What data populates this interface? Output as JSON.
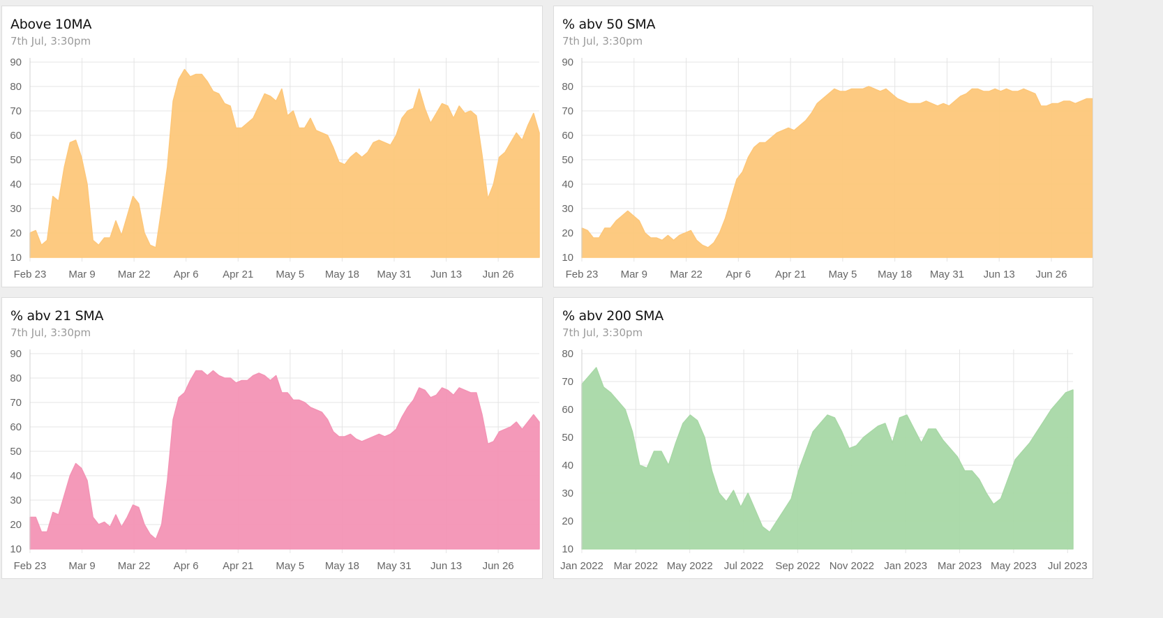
{
  "charts": [
    {
      "title": "Above 10MA",
      "subtitle": "7th Jul, 3:30pm",
      "color": "#fdc77a",
      "chart_data": {
        "type": "area",
        "ylim": [
          10,
          90
        ],
        "yticks": [
          90,
          80,
          70,
          60,
          50,
          40,
          30,
          20,
          10
        ],
        "xlim": [
          0,
          93
        ],
        "xtick_labels": [
          "Feb 23",
          "Mar 9",
          "Mar 22",
          "Apr 6",
          "Apr 21",
          "May 5",
          "May 18",
          "May 31",
          "Jun 13",
          "Jun 26"
        ],
        "xtick_positions": [
          0,
          9.5,
          19,
          28.5,
          38,
          47.5,
          57,
          66.5,
          76,
          85.5
        ],
        "series": [
          {
            "name": "Above 10MA",
            "values": [
              20,
              21,
              15,
              17,
              35,
              33,
              47,
              57,
              58,
              51,
              40,
              17,
              15,
              18,
              18,
              25,
              19,
              27,
              35,
              32,
              20,
              15,
              14,
              30,
              47,
              74,
              83,
              87,
              84,
              85,
              85,
              82,
              78,
              77,
              73,
              72,
              63,
              63,
              65,
              67,
              72,
              77,
              76,
              74,
              79,
              68,
              70,
              63,
              63,
              67,
              62,
              61,
              60,
              55,
              49,
              48,
              51,
              53,
              51,
              53,
              57,
              58,
              57,
              56,
              60,
              67,
              70,
              71,
              79,
              71,
              65,
              69,
              73,
              72,
              67,
              72,
              69,
              70,
              68,
              52,
              34,
              40,
              51,
              53,
              57,
              61,
              58,
              64,
              69,
              61
            ]
          }
        ]
      }
    },
    {
      "title": "% abv 50 SMA",
      "subtitle": "7th Jul, 3:30pm",
      "color": "#fdc77a",
      "chart_data": {
        "type": "area",
        "ylim": [
          10,
          90
        ],
        "yticks": [
          90,
          80,
          70,
          60,
          50,
          40,
          30,
          20,
          10
        ],
        "xlim": [
          0,
          93
        ],
        "xtick_labels": [
          "Feb 23",
          "Mar 9",
          "Mar 22",
          "Apr 6",
          "Apr 21",
          "May 5",
          "May 18",
          "May 31",
          "Jun 13",
          "Jun 26"
        ],
        "xtick_positions": [
          0,
          9.5,
          19,
          28.5,
          38,
          47.5,
          57,
          66.5,
          76,
          85.5
        ],
        "series": [
          {
            "name": "% abv 50 SMA",
            "values": [
              22,
              21,
              18,
              18,
              22,
              22,
              25,
              27,
              29,
              27,
              25,
              20,
              18,
              18,
              17,
              19,
              17,
              19,
              20,
              21,
              17,
              15,
              14,
              16,
              20,
              26,
              34,
              42,
              45,
              51,
              55,
              57,
              57,
              59,
              61,
              62,
              63,
              62,
              64,
              66,
              69,
              73,
              75,
              77,
              79,
              78,
              78,
              79,
              79,
              79,
              80,
              79,
              78,
              79,
              77,
              75,
              74,
              73,
              73,
              73,
              74,
              73,
              72,
              73,
              72,
              74,
              76,
              77,
              79,
              79,
              78,
              78,
              79,
              78,
              79,
              78,
              78,
              79,
              78,
              77,
              72,
              72,
              73,
              73,
              74,
              74,
              73,
              74,
              75,
              75
            ]
          }
        ]
      }
    },
    {
      "title": "% abv 21 SMA",
      "subtitle": "7th Jul, 3:30pm",
      "color": "#f394b5",
      "chart_data": {
        "type": "area",
        "ylim": [
          10,
          90
        ],
        "yticks": [
          90,
          80,
          70,
          60,
          50,
          40,
          30,
          20,
          10
        ],
        "xlim": [
          0,
          93
        ],
        "xtick_labels": [
          "Feb 23",
          "Mar 9",
          "Mar 22",
          "Apr 6",
          "Apr 21",
          "May 5",
          "May 18",
          "May 31",
          "Jun 13",
          "Jun 26"
        ],
        "xtick_positions": [
          0,
          9.5,
          19,
          28.5,
          38,
          47.5,
          57,
          66.5,
          76,
          85.5
        ],
        "series": [
          {
            "name": "% abv 21 SMA",
            "values": [
              23,
              23,
              17,
              17,
              25,
              24,
              32,
              40,
              45,
              43,
              38,
              23,
              20,
              21,
              19,
              24,
              19,
              23,
              28,
              27,
              20,
              16,
              14,
              20,
              38,
              63,
              72,
              74,
              79,
              83,
              83,
              81,
              83,
              81,
              80,
              80,
              78,
              79,
              79,
              81,
              82,
              81,
              79,
              81,
              74,
              74,
              71,
              71,
              70,
              68,
              67,
              66,
              63,
              58,
              56,
              56,
              57,
              55,
              54,
              55,
              56,
              57,
              56,
              57,
              59,
              64,
              68,
              71,
              76,
              75,
              72,
              73,
              76,
              75,
              73,
              76,
              75,
              74,
              74,
              65,
              53,
              54,
              58,
              59,
              60,
              62,
              59,
              62,
              65,
              62
            ]
          }
        ]
      }
    },
    {
      "title": "% abv 200 SMA",
      "subtitle": "7th Jul, 3:30pm",
      "color": "#a8d8a6",
      "chart_data": {
        "type": "area",
        "ylim": [
          10,
          80
        ],
        "yticks": [
          80,
          70,
          60,
          50,
          40,
          30,
          20,
          10
        ],
        "xlim": [
          0,
          18.2
        ],
        "xtick_labels": [
          "Jan 2022",
          "Mar 2022",
          "May 2022",
          "Jul 2022",
          "Sep 2022",
          "Nov 2022",
          "Jan 2023",
          "Mar 2023",
          "May 2023",
          "Jul 2023"
        ],
        "xtick_positions": [
          0,
          2,
          4,
          6,
          8,
          10,
          12,
          14,
          16,
          18
        ],
        "series": [
          {
            "name": "% abv 200 SMA",
            "values": [
              69,
              72,
              75,
              68,
              66,
              63,
              60,
              52,
              40,
              39,
              45,
              45,
              40,
              48,
              55,
              58,
              56,
              50,
              38,
              30,
              27,
              31,
              25,
              30,
              24,
              18,
              16,
              20,
              24,
              28,
              38,
              45,
              52,
              55,
              58,
              57,
              52,
              46,
              47,
              50,
              52,
              54,
              55,
              48,
              57,
              58,
              53,
              48,
              53,
              53,
              49,
              46,
              43,
              38,
              38,
              35,
              30,
              26,
              28,
              35,
              42,
              45,
              48,
              52,
              56,
              60,
              63,
              66,
              67
            ]
          }
        ]
      }
    }
  ]
}
